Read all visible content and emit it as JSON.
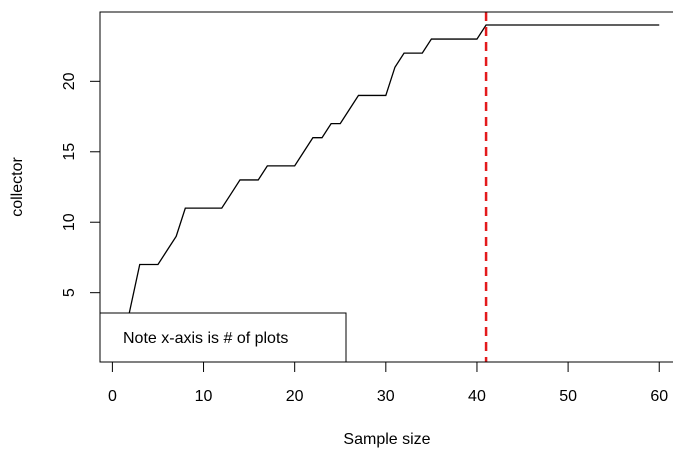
{
  "chart_data": {
    "type": "line",
    "xlabel": "Sample size",
    "ylabel": "collector",
    "annotation": "Note x-axis is # of plots",
    "x": [
      1,
      2,
      3,
      4,
      5,
      6,
      7,
      8,
      9,
      10,
      11,
      12,
      13,
      14,
      15,
      16,
      17,
      18,
      19,
      20,
      21,
      22,
      23,
      24,
      25,
      26,
      27,
      28,
      29,
      30,
      31,
      32,
      33,
      34,
      35,
      36,
      37,
      38,
      39,
      40,
      41,
      42,
      43,
      44,
      45,
      46,
      47,
      48,
      49,
      50,
      51,
      52,
      53,
      54,
      55,
      56,
      57,
      58,
      59,
      60
    ],
    "series": [
      {
        "color": "#000000",
        "values": [
          1,
          4,
          7,
          7,
          7,
          8,
          9,
          11,
          11,
          11,
          11,
          11,
          12,
          13,
          13,
          13,
          14,
          14,
          14,
          14,
          15,
          16,
          16,
          17,
          17,
          18,
          19,
          19,
          19,
          19,
          21,
          22,
          22,
          22,
          23,
          23,
          23,
          23,
          23,
          23,
          24,
          24,
          24,
          24,
          24,
          24,
          24,
          24,
          24,
          24,
          24,
          24,
          24,
          24,
          24,
          24,
          24,
          24,
          24,
          24
        ]
      }
    ],
    "vline": {
      "x": 41,
      "color": "#e31a1c"
    },
    "xlim": [
      -1.36,
      61.4
    ],
    "ylim": [
      0.08,
      24.92
    ],
    "xticks": [
      0,
      10,
      20,
      30,
      40,
      50,
      60
    ],
    "yticks": [
      5,
      10,
      15,
      20
    ]
  }
}
